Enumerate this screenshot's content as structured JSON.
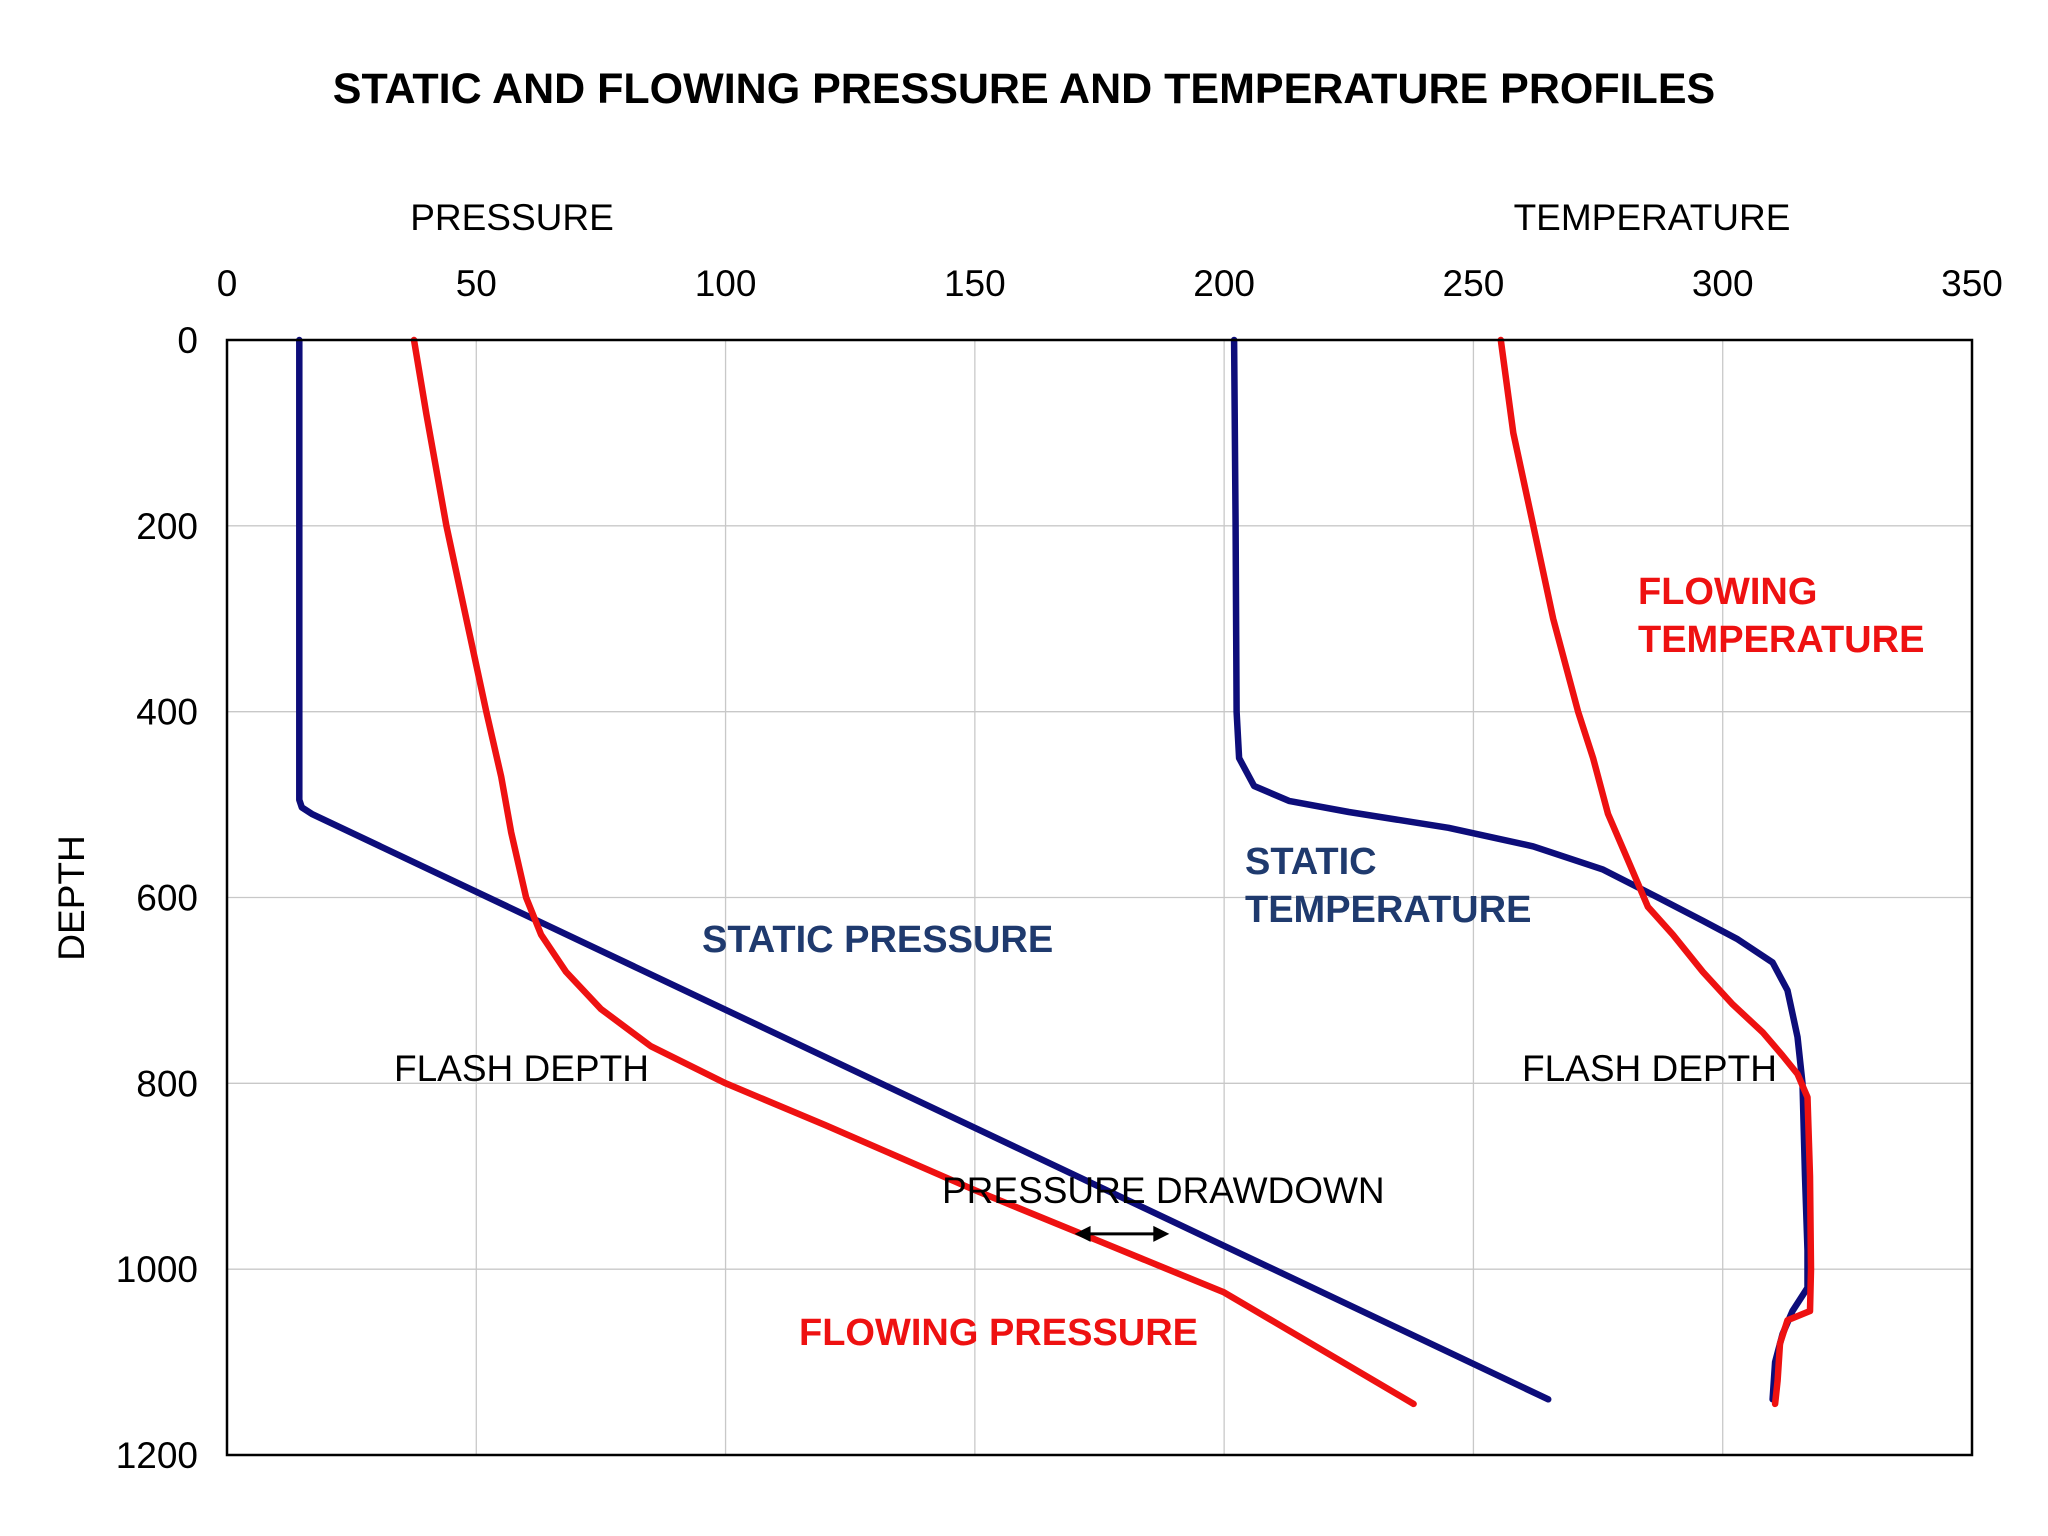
{
  "chart_data": {
    "type": "line",
    "title": "STATIC AND FLOWING PRESSURE AND TEMPERATURE PROFILES",
    "x_axis_top_labels": [
      "PRESSURE",
      "TEMPERATURE"
    ],
    "ylabel": "DEPTH",
    "xlim": [
      0,
      350
    ],
    "ylim": [
      0,
      1200
    ],
    "y_inverted": true,
    "grid": true,
    "x_ticks": [
      "0",
      "50",
      "100",
      "150",
      "200",
      "250",
      "300",
      "350"
    ],
    "y_ticks": [
      "0",
      "200",
      "400",
      "600",
      "800",
      "1000",
      "1200"
    ],
    "colors": {
      "static": "#0d0d7a",
      "flowing": "#ee1111",
      "grid": "#c8c8c8"
    },
    "series": [
      {
        "name": "STATIC PRESSURE",
        "color": "#0d0d7a",
        "points": [
          [
            14.5,
            0
          ],
          [
            14.5,
            495
          ],
          [
            15,
            503
          ],
          [
            17,
            510
          ],
          [
            265,
            1140
          ]
        ]
      },
      {
        "name": "FLOWING PRESSURE",
        "color": "#ee1111",
        "points": [
          [
            37.5,
            0
          ],
          [
            40,
            80
          ],
          [
            44,
            200
          ],
          [
            48,
            300
          ],
          [
            52,
            400
          ],
          [
            55,
            470
          ],
          [
            57,
            530
          ],
          [
            60,
            600
          ],
          [
            63,
            640
          ],
          [
            68,
            680
          ],
          [
            75,
            720
          ],
          [
            85,
            760
          ],
          [
            100,
            800
          ],
          [
            120,
            845
          ],
          [
            150,
            915
          ],
          [
            175,
            970
          ],
          [
            200,
            1025
          ],
          [
            238,
            1145
          ]
        ]
      },
      {
        "name": "STATIC TEMPERATURE",
        "color": "#0d0d7a",
        "points": [
          [
            202,
            0
          ],
          [
            202.3,
            200
          ],
          [
            202.5,
            400
          ],
          [
            203,
            450
          ],
          [
            206,
            480
          ],
          [
            213,
            496
          ],
          [
            225,
            508
          ],
          [
            245,
            525
          ],
          [
            262,
            545
          ],
          [
            276,
            570
          ],
          [
            287,
            600
          ],
          [
            296,
            625
          ],
          [
            303,
            645
          ],
          [
            310,
            670
          ],
          [
            313,
            700
          ],
          [
            315,
            750
          ],
          [
            316,
            800
          ],
          [
            316.5,
            900
          ],
          [
            317,
            980
          ],
          [
            317,
            1020
          ],
          [
            314,
            1045
          ],
          [
            312,
            1070
          ],
          [
            310.5,
            1100
          ],
          [
            310,
            1140
          ]
        ]
      },
      {
        "name": "FLOWING TEMPERATURE",
        "color": "#ee1111",
        "points": [
          [
            255.5,
            0
          ],
          [
            258,
            100
          ],
          [
            262,
            200
          ],
          [
            266,
            300
          ],
          [
            271,
            400
          ],
          [
            274,
            450
          ],
          [
            277,
            510
          ],
          [
            281,
            560
          ],
          [
            285,
            610
          ],
          [
            290,
            640
          ],
          [
            296,
            680
          ],
          [
            302,
            715
          ],
          [
            308,
            745
          ],
          [
            312,
            770
          ],
          [
            315,
            790
          ],
          [
            317,
            815
          ],
          [
            317.5,
            900
          ],
          [
            317.7,
            1000
          ],
          [
            317.5,
            1045
          ],
          [
            313,
            1055
          ],
          [
            311.5,
            1080
          ],
          [
            311,
            1120
          ],
          [
            310.5,
            1145
          ]
        ]
      }
    ],
    "annotations": {
      "flash_depth_pressure": "FLASH DEPTH",
      "flash_depth_temperature": "FLASH DEPTH",
      "pressure_drawdown": "PRESSURE DRAWDOWN"
    },
    "drawdown_arrow": {
      "depth": 962,
      "from": 170,
      "to": 189
    }
  }
}
